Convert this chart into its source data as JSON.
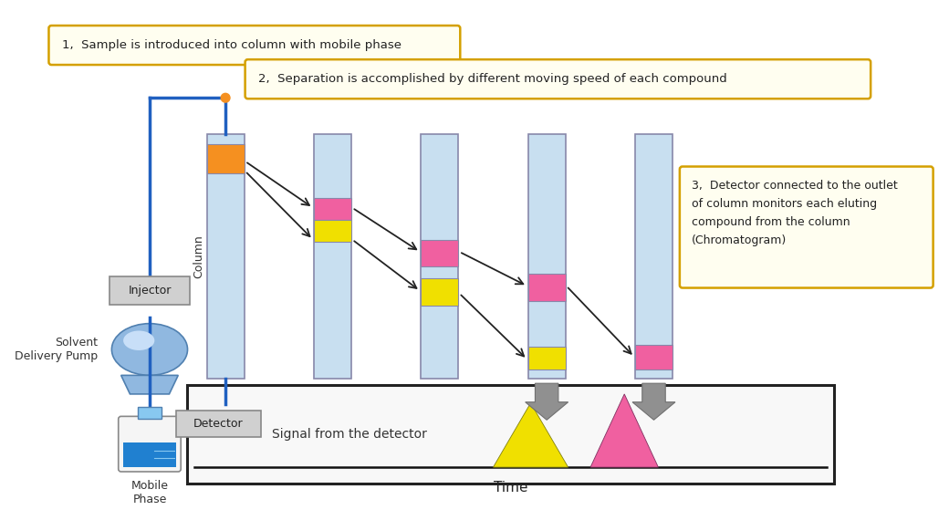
{
  "bg_color": "#ffffff",
  "column_fill": "#c8dff0",
  "column_border": "#8888aa",
  "orange_color": "#f59020",
  "pink_color": "#f060a0",
  "yellow_color": "#f0e000",
  "blue_line": "#2060c0",
  "annotation_border": "#d4a000",
  "annotation_bg": "#fffef0",
  "label1": "1,  Sample is introduced into column with mobile phase",
  "label2": "2,  Separation is accomplished by different moving speed of each compound",
  "label3": "3,  Detector connected to the outlet\nof column monitors each eluting\ncompound from the column\n(Chromatogram)",
  "col_label": "Column",
  "injector_label": "Injector",
  "detector_label": "Detector",
  "pump_label": "Solvent\nDelivery Pump",
  "mobile_label": "Mobile\nPhase",
  "signal_label": "Signal from the detector",
  "time_label": "Time"
}
